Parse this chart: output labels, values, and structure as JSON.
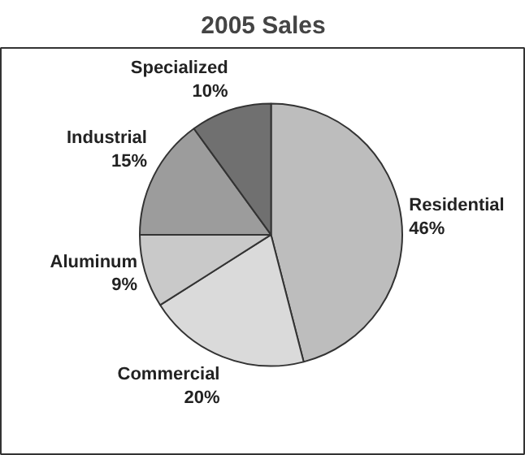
{
  "chart_data": {
    "type": "pie",
    "title": "2005 Sales",
    "categories": [
      "Residential",
      "Commercial",
      "Aluminum",
      "Industrial",
      "Specialized"
    ],
    "values": [
      46,
      20,
      9,
      15,
      10
    ],
    "value_labels": [
      "46%",
      "20%",
      "9%",
      "15%",
      "10%"
    ],
    "colors": [
      "#bdbdbd",
      "#dadada",
      "#c9c9c9",
      "#9c9c9c",
      "#707070"
    ]
  }
}
